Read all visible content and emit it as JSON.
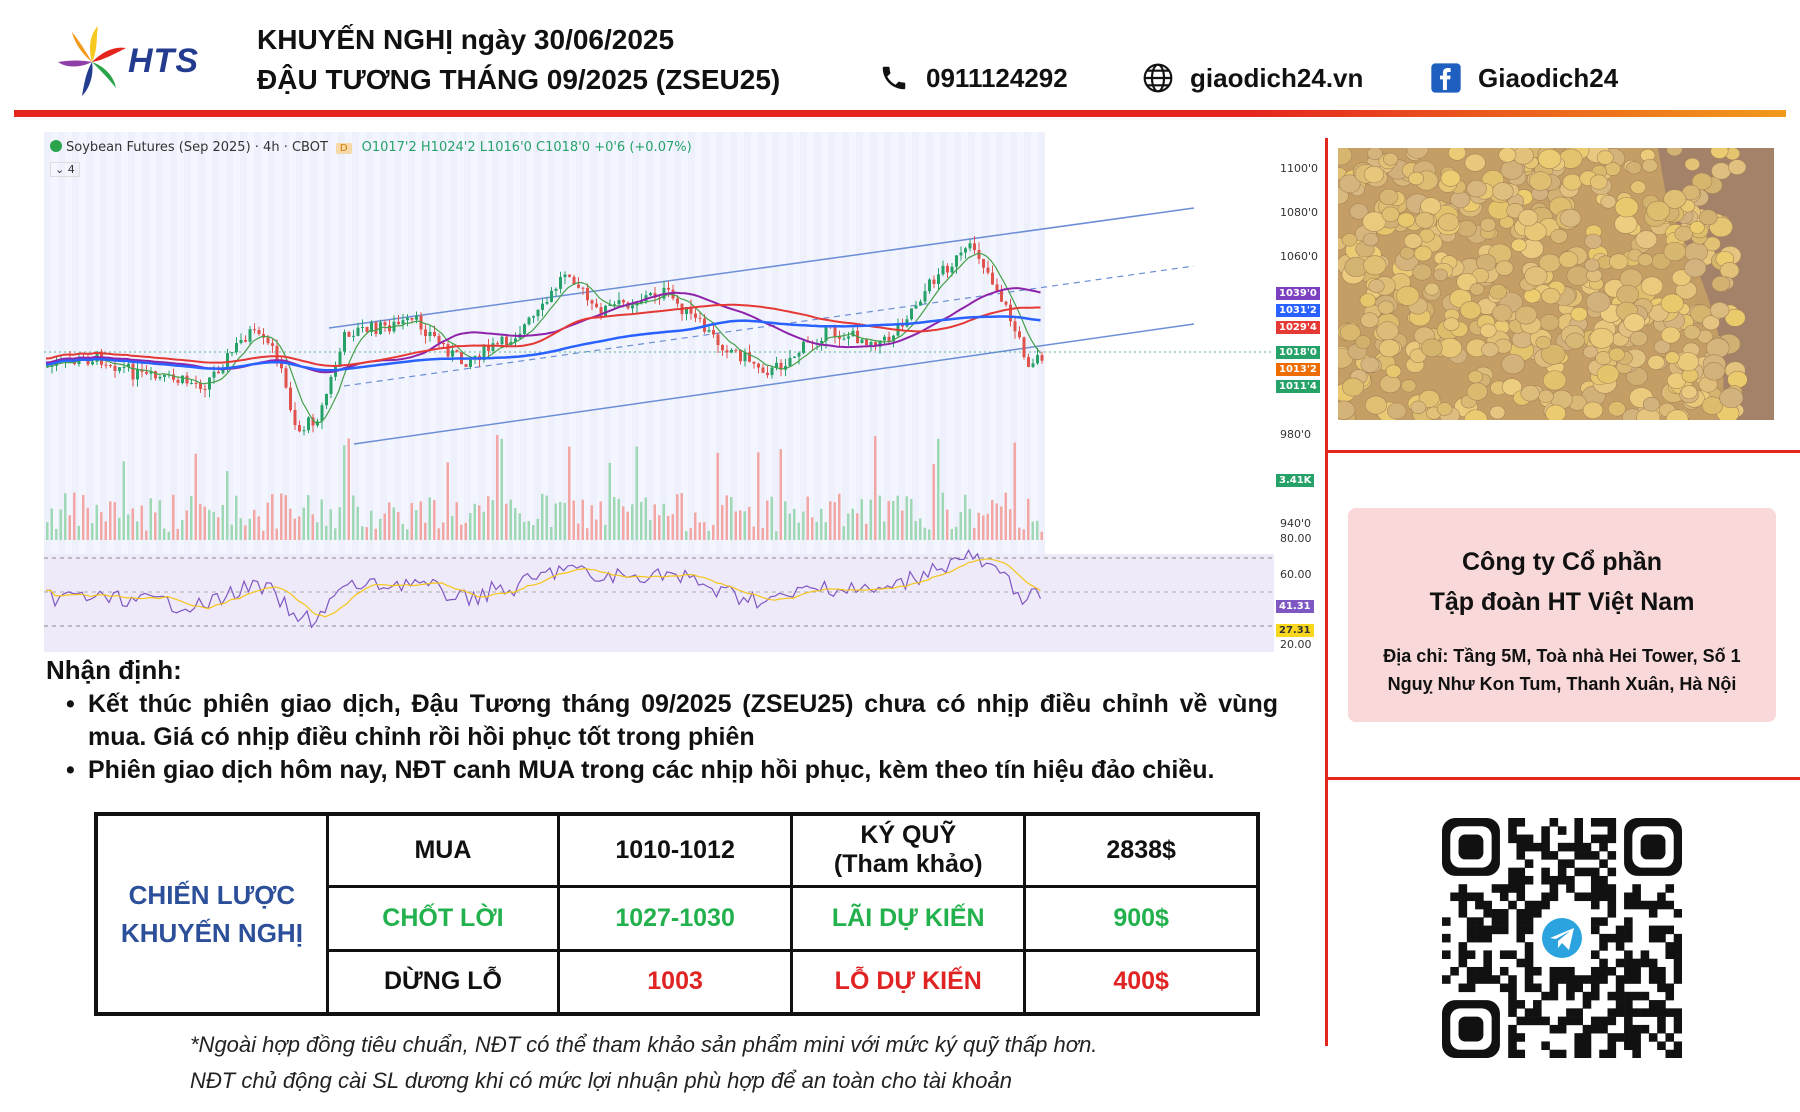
{
  "header": {
    "brand": "HTS",
    "title_line1": "KHUYẾN NGHỊ ngày 30/06/2025",
    "title_line2": "ĐẬU TƯƠNG THÁNG 09/2025 (ZSEU25)",
    "phone": "0911124292",
    "website": "giaodich24.vn",
    "facebook": "Giaodich24",
    "icons": [
      "phone-icon",
      "globe-icon",
      "facebook-icon"
    ]
  },
  "chart": {
    "legend_title": "Soybean Futures (Sep 2025) · 4h · CBOT",
    "legend_badge": "D",
    "legend_ohlc": "O1017'2 H1024'2 L1016'0 C1018'0 +0'6 (+0.07%)",
    "legend_sub": "4",
    "price_ticks": [
      "1100'0",
      "1080'0",
      "1060'0",
      "980'0",
      "940'0"
    ],
    "price_labels": [
      {
        "text": "1039'0",
        "color": "#7b3fbf"
      },
      {
        "text": "1031'2",
        "color": "#2962ff"
      },
      {
        "text": "1029'4",
        "color": "#e53935"
      },
      {
        "text": "1018'0",
        "color": "#26a269"
      },
      {
        "text": "1013'2",
        "color": "#ef6c00"
      },
      {
        "text": "1011'4",
        "color": "#26a269"
      }
    ],
    "volume_label": "3.41K",
    "rsi_ticks": [
      "80.00",
      "60.00",
      "20.00"
    ],
    "rsi_labels": [
      {
        "text": "41.31",
        "color": "#7e57c2"
      },
      {
        "text": "27.31",
        "color": "#f9d71c"
      }
    ]
  },
  "analysis": {
    "heading": "Nhận định:",
    "bullets": [
      "Kết thúc phiên giao dịch, Đậu Tương tháng 09/2025 (ZSEU25) chưa có nhịp điều chỉnh về vùng mua. Giá có nhịp điều chỉnh rồi hồi phục tốt trong phiên",
      "Phiên giao dịch hôm nay, NĐT canh MUA trong các nhịp hồi phục, kèm theo tín hiệu đảo chiều."
    ]
  },
  "strategy": {
    "label_line1": "CHIẾN LƯỢC",
    "label_line2": "KHUYẾN NGHỊ",
    "rows": [
      {
        "action": "MUA",
        "price": "1010-1012",
        "metric_line1": "KÝ QUỸ",
        "metric_line2": "(Tham khảo)",
        "value": "2838$"
      },
      {
        "action": "CHỐT LỜI",
        "price": "1027-1030",
        "metric_line1": "LÃI DỰ KIẾN",
        "metric_line2": "",
        "value": "900$"
      },
      {
        "action": "DỪNG LỖ",
        "price": "1003",
        "metric_line1": "LỖ DỰ KIẾN",
        "metric_line2": "",
        "value": "400$"
      }
    ]
  },
  "notes": [
    "*Ngoài hợp đồng tiêu chuẩn, NĐT có thể tham khảo sản phẩm mini với mức ký quỹ thấp hơn.",
    "NĐT chủ động cài SL dương khi có mức lợi nhuận phù hợp để an toàn cho tài khoản"
  ],
  "company": {
    "name_line1": "Công ty Cổ phần",
    "name_line2": "Tập đoàn HT Việt Nam",
    "address": "Địa chỉ: Tầng 5M, Toà nhà Hei Tower, Số 1 Nguỵ Như Kon Tum, Thanh Xuân, Hà Nội"
  },
  "colors": {
    "accent_red": "#e5261f",
    "brand_blue": "#2c4f9a",
    "profit_green": "#22b14c",
    "loss_red": "#e02424",
    "company_bg": "#f8d8d8"
  }
}
